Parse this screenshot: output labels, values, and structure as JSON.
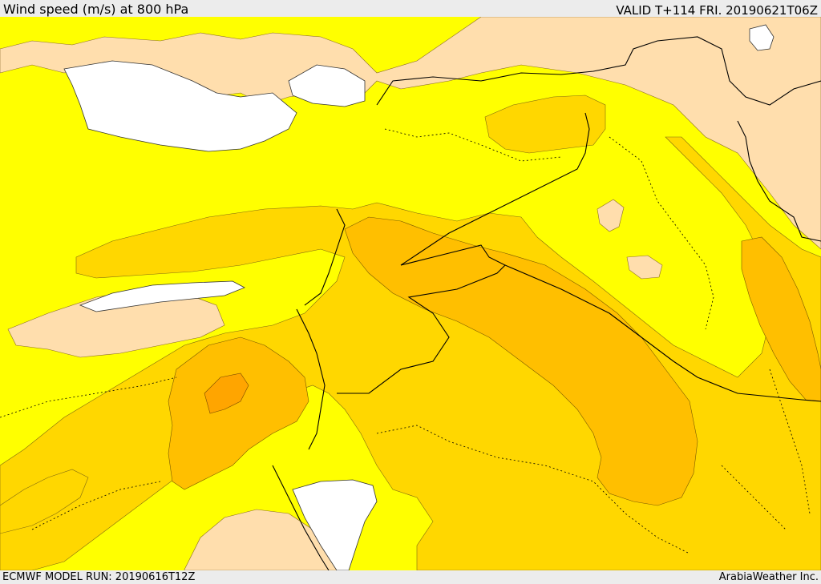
{
  "header": {
    "title": "Wind speed (m/s) at 800 hPa",
    "valid_time": "VALID T+114 FRI. 20190621T06Z"
  },
  "footer": {
    "model_run": "ECMWF MODEL RUN: 20190616T12Z",
    "credit": "ArabiaWeather Inc."
  },
  "map": {
    "colors": {
      "sea": "#ffffff",
      "calm": "#ffdead",
      "light": "#ffff00",
      "moderate": "#ffd700",
      "fresh": "#ffbf00",
      "strong": "#ffa500",
      "border": "#000000"
    }
  }
}
